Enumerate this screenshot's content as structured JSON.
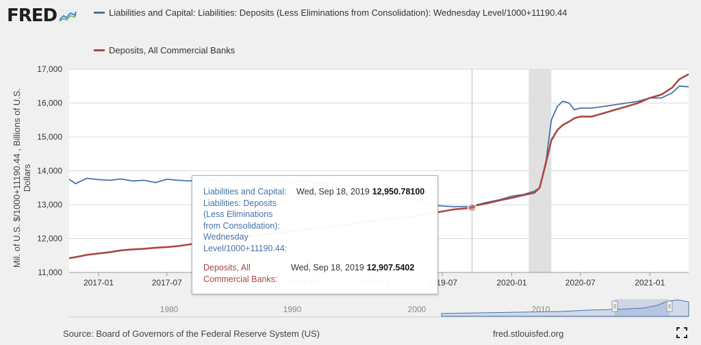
{
  "header": {
    "logo_text": "FRED",
    "logo_icon": "fred-chart-icon"
  },
  "legend": [
    {
      "label": "Liabilities and Capital: Liabilities: Deposits (Less Eliminations from Consolidation): Wednesday Level/1000+11190.44",
      "color": "#4572a7"
    },
    {
      "label": "Deposits, All Commercial Banks",
      "color": "#aa4643"
    }
  ],
  "colors": {
    "series_blue": "#4572a7",
    "series_red": "#aa4643",
    "recession": "#e0e0e0",
    "plot_bg": "#ffffff",
    "navigator_fill": "#cfdbea"
  },
  "chart_data": {
    "type": "line",
    "ylabel": "Mil. of U.S. $/1000+11190.44 , Billions of U.S. Dollars",
    "ylim": [
      11000,
      17000
    ],
    "xlim": [
      "2016-10-15",
      "2021-04-14"
    ],
    "yticks": [
      "11,000",
      "12,000",
      "13,000",
      "14,000",
      "15,000",
      "16,000",
      "17,000"
    ],
    "xticks": [
      "2017-01",
      "2017-07",
      "2018-01",
      "2018-07",
      "2019-01",
      "2019-07",
      "2020-01",
      "2020-07",
      "2021-01"
    ],
    "grid": true,
    "recession": [
      "2020-02-15",
      "2020-04-15"
    ],
    "crosshair_date": "2019-09-18",
    "series": [
      {
        "name": "Liabilities and Capital: Liabilities: Deposits (Less Eliminations from Consolidation): Wednesday Level/1000+11190.44",
        "color": "#4572a7",
        "x": [
          "2016-10-15",
          "2016-11-01",
          "2016-12-01",
          "2017-01-01",
          "2017-02-01",
          "2017-03-01",
          "2017-04-01",
          "2017-05-01",
          "2017-06-01",
          "2017-07-01",
          "2017-08-01",
          "2017-09-01",
          "2017-10-01",
          "2017-11-01",
          "2017-12-01",
          "2018-01-01",
          "2018-02-01",
          "2018-03-01",
          "2018-04-01",
          "2018-05-01",
          "2018-06-01",
          "2018-07-01",
          "2018-08-01",
          "2018-09-01",
          "2018-10-01",
          "2018-11-01",
          "2018-12-01",
          "2019-01-01",
          "2019-02-01",
          "2019-03-01",
          "2019-04-01",
          "2019-05-01",
          "2019-06-01",
          "2019-07-01",
          "2019-08-01",
          "2019-09-18",
          "2019-10-01",
          "2019-11-01",
          "2019-12-01",
          "2020-01-01",
          "2020-02-01",
          "2020-03-01",
          "2020-03-15",
          "2020-04-01",
          "2020-04-15",
          "2020-05-01",
          "2020-05-15",
          "2020-06-01",
          "2020-06-15",
          "2020-07-01",
          "2020-08-01",
          "2020-09-01",
          "2020-10-01",
          "2020-11-01",
          "2020-12-01",
          "2021-01-01",
          "2021-02-01",
          "2021-03-01",
          "2021-03-20",
          "2021-04-14"
        ],
        "values": [
          13750,
          13620,
          13780,
          13740,
          13720,
          13760,
          13700,
          13720,
          13650,
          13750,
          13720,
          13700,
          13760,
          13720,
          13700,
          13760,
          13690,
          13720,
          13680,
          13700,
          13650,
          13680,
          13650,
          13620,
          13580,
          13520,
          13450,
          13400,
          13350,
          13250,
          13180,
          13100,
          13000,
          12960,
          12940,
          12950,
          13000,
          13080,
          13150,
          13250,
          13300,
          13400,
          13500,
          14300,
          15500,
          15900,
          16050,
          16000,
          15800,
          15850,
          15850,
          15900,
          15950,
          16000,
          16050,
          16150,
          16150,
          16300,
          16500,
          16480
        ]
      },
      {
        "name": "Deposits, All Commercial Banks",
        "color": "#aa4643",
        "x": [
          "2016-10-15",
          "2016-11-01",
          "2016-12-01",
          "2017-01-01",
          "2017-02-01",
          "2017-03-01",
          "2017-04-01",
          "2017-05-01",
          "2017-06-01",
          "2017-07-01",
          "2017-08-01",
          "2017-09-01",
          "2017-10-01",
          "2017-11-01",
          "2017-12-01",
          "2018-01-01",
          "2018-02-01",
          "2018-03-01",
          "2018-04-01",
          "2018-05-01",
          "2018-06-01",
          "2018-07-01",
          "2018-08-01",
          "2018-09-01",
          "2018-10-01",
          "2018-11-01",
          "2018-12-01",
          "2019-01-01",
          "2019-02-01",
          "2019-03-01",
          "2019-04-01",
          "2019-05-01",
          "2019-06-01",
          "2019-07-01",
          "2019-08-01",
          "2019-09-18",
          "2019-10-01",
          "2019-11-01",
          "2019-12-01",
          "2020-01-01",
          "2020-02-01",
          "2020-03-01",
          "2020-03-15",
          "2020-04-01",
          "2020-04-15",
          "2020-05-01",
          "2020-05-15",
          "2020-06-01",
          "2020-06-15",
          "2020-07-01",
          "2020-08-01",
          "2020-09-01",
          "2020-10-01",
          "2020-11-01",
          "2020-12-01",
          "2021-01-01",
          "2021-02-01",
          "2021-03-01",
          "2021-03-20",
          "2021-04-14"
        ],
        "values": [
          11420,
          11450,
          11520,
          11560,
          11600,
          11650,
          11680,
          11700,
          11730,
          11750,
          11780,
          11830,
          11880,
          11930,
          11980,
          12020,
          12060,
          12100,
          12140,
          12180,
          12220,
          12260,
          12300,
          12340,
          12380,
          12420,
          12480,
          12520,
          12560,
          12600,
          12640,
          12680,
          12740,
          12800,
          12860,
          12908,
          12980,
          13050,
          13130,
          13200,
          13280,
          13350,
          13500,
          14250,
          14900,
          15200,
          15350,
          15450,
          15550,
          15600,
          15600,
          15700,
          15800,
          15900,
          16000,
          16150,
          16250,
          16450,
          16700,
          16850
        ]
      }
    ]
  },
  "navigator": {
    "labels": [
      "1980",
      "1990",
      "2000",
      "2010"
    ]
  },
  "tooltip": {
    "rows": [
      {
        "name": "Liabilities and Capital: Liabilities: Deposits (Less Eliminations from Consolidation): Wednesday Level/1000+11190.44:",
        "date": "Wed, Sep 18, 2019",
        "value": "12,950.78100",
        "color": "#4572a7"
      },
      {
        "name": "Deposits, All Commercial Banks:",
        "date": "Wed, Sep 18, 2019",
        "value": "12,907.5402",
        "color": "#aa4643"
      }
    ],
    "name_lines": [
      [
        "Liabilities and Capital:",
        "Liabilities: Deposits",
        "(Less Eliminations",
        "from Consolidation):",
        "Wednesday",
        "Level/1000+11190.44:"
      ],
      [
        "Deposits, All",
        "Commercial Banks:"
      ]
    ]
  },
  "footer": {
    "source": "Source: Board of Governors of the Federal Reserve System (US)",
    "url": "fred.stlouisfed.org",
    "fullscreen_icon": "fullscreen-icon"
  }
}
